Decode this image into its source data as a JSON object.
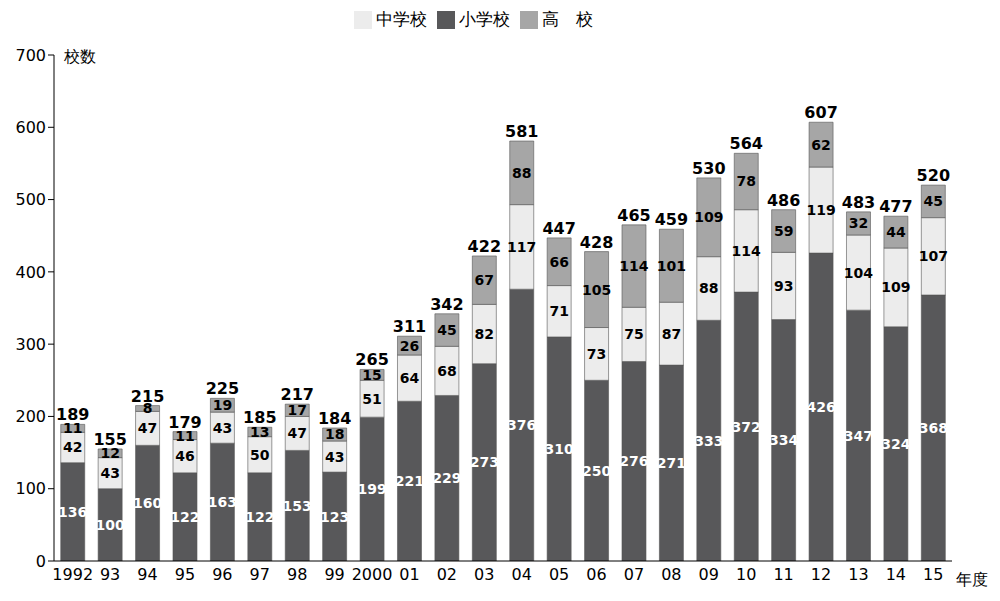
{
  "chart_data": {
    "type": "bar",
    "stacked": true,
    "data_labels": true,
    "grid": false,
    "legend": "top",
    "y_label": "校数",
    "x_label": "年度",
    "categories": [
      "1992",
      "93",
      "94",
      "95",
      "96",
      "97",
      "98",
      "99",
      "2000",
      "01",
      "02",
      "03",
      "04",
      "05",
      "06",
      "07",
      "08",
      "09",
      "10",
      "11",
      "12",
      "13",
      "14",
      "15"
    ],
    "series": [
      {
        "name": "小学校",
        "color": "#58585a",
        "values": [
          136,
          100,
          160,
          122,
          163,
          122,
          153,
          123,
          199,
          221,
          229,
          273,
          376,
          310,
          250,
          276,
          271,
          333,
          372,
          334,
          426,
          347,
          324,
          368
        ]
      },
      {
        "name": "中学校",
        "color": "#ececec",
        "values": [
          42,
          43,
          47,
          46,
          43,
          50,
          47,
          43,
          51,
          64,
          68,
          82,
          117,
          71,
          73,
          75,
          87,
          88,
          114,
          93,
          119,
          104,
          109,
          107
        ]
      },
      {
        "name": "高　校",
        "color": "#a6a6a6",
        "values": [
          11,
          12,
          8,
          11,
          19,
          13,
          17,
          18,
          15,
          26,
          45,
          67,
          88,
          66,
          105,
          114,
          101,
          109,
          78,
          59,
          62,
          32,
          44,
          45
        ]
      }
    ],
    "totals": [
      189,
      155,
      215,
      179,
      225,
      185,
      217,
      184,
      265,
      311,
      342,
      422,
      581,
      447,
      428,
      465,
      459,
      530,
      564,
      486,
      607,
      483,
      477,
      520
    ],
    "ylim": [
      0,
      700
    ],
    "yticks": [
      0,
      100,
      200,
      300,
      400,
      500,
      600,
      700
    ]
  }
}
